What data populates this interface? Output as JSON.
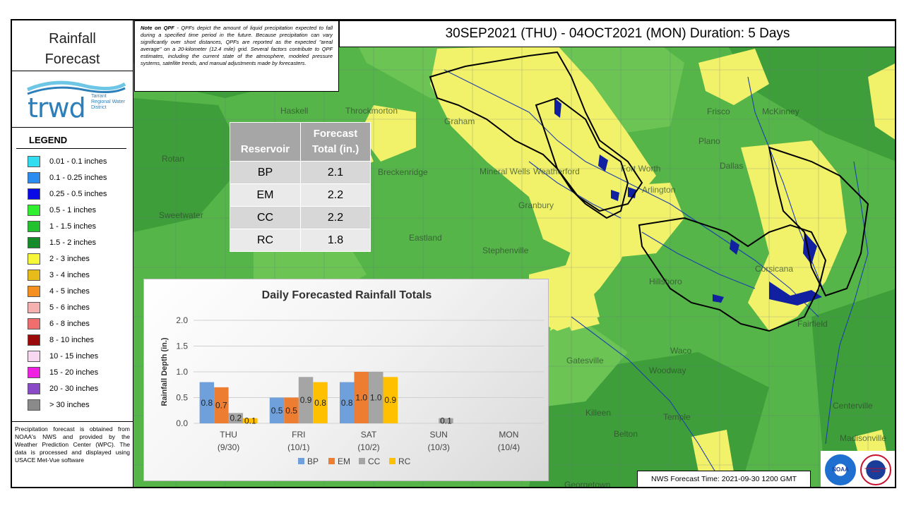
{
  "header": {
    "title": "30SEP2021 (THU) - 04OCT2021 (MON) Duration: 5 Days"
  },
  "panel": {
    "title_line1": "Rainfall",
    "title_line2": "Forecast",
    "logo": {
      "text": "trwd",
      "sub": "Tarrant Regional Water District"
    },
    "legend_title": "LEGEND",
    "legend": [
      {
        "label": "0.01 - 0.1 inches",
        "color": "#33ddf0"
      },
      {
        "label": "0.1 - 0.25 inches",
        "color": "#2a8cf0"
      },
      {
        "label": "0.25 - 0.5 inches",
        "color": "#0a0ae6"
      },
      {
        "label": "0.5 - 1 inches",
        "color": "#2ef02e"
      },
      {
        "label": "1 - 1.5 inches",
        "color": "#22c22e"
      },
      {
        "label": "1.5 - 2 inches",
        "color": "#148a28"
      },
      {
        "label": "2 - 3 inches",
        "color": "#f6f63a"
      },
      {
        "label": "3 - 4 inches",
        "color": "#e6bb1a"
      },
      {
        "label": "4 - 5 inches",
        "color": "#f5901e"
      },
      {
        "label": "5 - 6 inches",
        "color": "#f5b0b0"
      },
      {
        "label": "6 - 8 inches",
        "color": "#f06e6e"
      },
      {
        "label": "8 - 10 inches",
        "color": "#9a0a0a"
      },
      {
        "label": "10 - 15 inches",
        "color": "#f8d8f0"
      },
      {
        "label": "15 - 20 inches",
        "color": "#f020e0"
      },
      {
        "label": "20 - 30 inches",
        "color": "#8a4ac8"
      },
      {
        "label": "> 30 inches",
        "color": "#8a8a8a"
      }
    ],
    "source_text": "Precipitation forecast is obtained from NOAA's NWS and provided by the Weather Prediction Center (WPC). The data is processed and displayed using USACE Met-Vue software"
  },
  "note": {
    "title": "Note on QPF",
    "text": " - QPFs depict the amount of liquid precipitation expected to fall during a specified time period in the future. Because precipitation can vary significantly over short distances, QPFs are reported as the expected \"areal average\" on a 20-kilometer (12.4 mile) grid. Several factors contribute to QPF estimates, including the current state of the atmosphere, modeled pressure systems, satellite trends, and manual adjustments made by forecasters."
  },
  "table": {
    "header_reservoir": "Reservoir",
    "header_total_line1": "Forecast",
    "header_total_line2": "Total (in.)",
    "rows": [
      {
        "reservoir": "BP",
        "total": "2.1"
      },
      {
        "reservoir": "EM",
        "total": "2.2"
      },
      {
        "reservoir": "CC",
        "total": "2.2"
      },
      {
        "reservoir": "RC",
        "total": "1.8"
      }
    ]
  },
  "map_labels": [
    "Haskell",
    "Throckmorton",
    "Graham",
    "Rotan",
    "Breckenridge",
    "Mineral Wells",
    "Weatherford",
    "Fort Worth",
    "Arlington",
    "Dallas",
    "Plano",
    "Frisco",
    "McKinney",
    "Sweetwater",
    "Granbury",
    "Eastland",
    "Stephenville",
    "Corsicana",
    "Hillsboro",
    "Fairfield",
    "Waco",
    "Gatesville",
    "Woodway",
    "Killeen",
    "Temple",
    "Belton",
    "Centerville",
    "Madisonville",
    "Georgetown"
  ],
  "nws": {
    "text": "NWS Forecast Time: 2021-09-30 1200 GMT"
  },
  "logos": {
    "noaa": "NOAA",
    "nws": "NATIONAL WEATHER SERVICE"
  },
  "chart_data": {
    "type": "bar",
    "title": "Daily Forecasted Rainfall Totals",
    "ylabel": "Rainfall Depth (in.)",
    "xlabel": "",
    "ylim": [
      0,
      2.0
    ],
    "yticks": [
      "0.0",
      "0.5",
      "1.0",
      "1.5",
      "2.0"
    ],
    "categories": [
      "THU (9/30)",
      "FRI (10/1)",
      "SAT (10/2)",
      "SUN (10/3)",
      "MON (10/4)"
    ],
    "category_lines": [
      [
        "THU",
        "(9/30)"
      ],
      [
        "FRI",
        "(10/1)"
      ],
      [
        "SAT",
        "(10/2)"
      ],
      [
        "SUN",
        "(10/3)"
      ],
      [
        "MON",
        "(10/4)"
      ]
    ],
    "series": [
      {
        "name": "BP",
        "color": "#6fa0dc",
        "values": [
          0.8,
          0.5,
          0.8,
          null,
          null
        ],
        "labels": [
          "0.8",
          "0.5",
          "0.8",
          "",
          ""
        ]
      },
      {
        "name": "EM",
        "color": "#ed7d31",
        "values": [
          0.7,
          0.5,
          1.0,
          null,
          null
        ],
        "labels": [
          "0.7",
          "0.5",
          "1.0",
          "",
          ""
        ]
      },
      {
        "name": "CC",
        "color": "#a5a5a5",
        "values": [
          0.2,
          0.9,
          1.0,
          0.1,
          null
        ],
        "labels": [
          "0.2",
          "0.9",
          "1.0",
          "0.1",
          ""
        ]
      },
      {
        "name": "RC",
        "color": "#ffc000",
        "values": [
          0.1,
          0.8,
          0.9,
          null,
          null
        ],
        "labels": [
          "0.1",
          "0.8",
          "0.9",
          "",
          ""
        ]
      }
    ],
    "legend": "bottom",
    "grid": true
  }
}
